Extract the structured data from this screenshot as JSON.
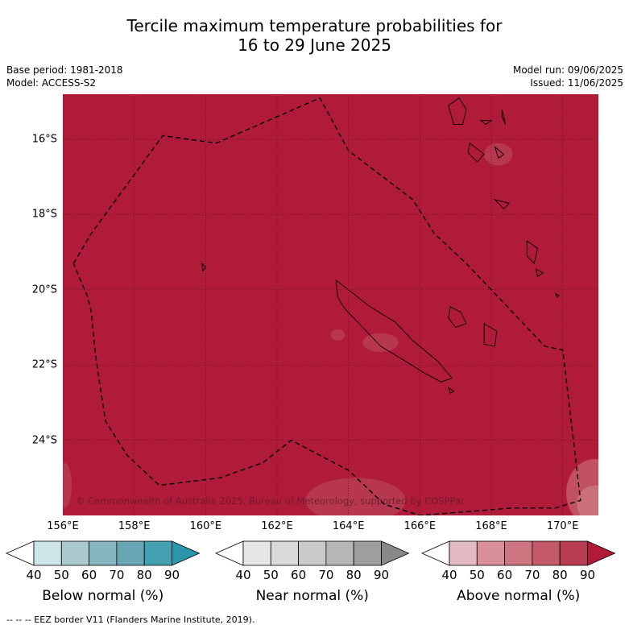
{
  "title": {
    "line1": "Tercile maximum temperature probabilities for",
    "line2": "16 to 29 June 2025"
  },
  "header_left": {
    "base_period": "Base period: 1981-2018",
    "model": "Model: ACCESS-S2"
  },
  "header_right": {
    "model_run": "Model run: 09/06/2025",
    "issued": "Issued: 11/06/2025"
  },
  "map": {
    "extent": {
      "lon_min": 156,
      "lon_max": 171,
      "lat_min": -26,
      "lat_max": -14.8
    },
    "lat_labels": [
      {
        "lat": -16,
        "text": "16°S"
      },
      {
        "lat": -18,
        "text": "18°S"
      },
      {
        "lat": -20,
        "text": "20°S"
      },
      {
        "lat": -22,
        "text": "22°S"
      },
      {
        "lat": -24,
        "text": "24°S"
      }
    ],
    "lon_labels": [
      {
        "lon": 156,
        "text": "156°E"
      },
      {
        "lon": 158,
        "text": "158°E"
      },
      {
        "lon": 160,
        "text": "160°E"
      },
      {
        "lon": 162,
        "text": "162°E"
      },
      {
        "lon": 164,
        "text": "164°E"
      },
      {
        "lon": 166,
        "text": "166°E"
      },
      {
        "lon": 168,
        "text": "168°E"
      },
      {
        "lon": 170,
        "text": "170°E"
      }
    ],
    "base_fill_color": "#b11b3a",
    "copyright": "© Commonwealth of Australia 2025, Bureau of Meteorology, supported by COSPPac"
  },
  "colorbars": [
    {
      "title": "Below normal (%)",
      "ticks": [
        "40",
        "50",
        "60",
        "70",
        "80",
        "90"
      ],
      "colors": [
        "#ffffff",
        "#cde4e9",
        "#a9c9cf",
        "#88b6c0",
        "#69a6b4",
        "#44a0b0",
        "#2b96ab"
      ]
    },
    {
      "title": "Near normal (%)",
      "ticks": [
        "40",
        "50",
        "60",
        "70",
        "80",
        "90"
      ],
      "colors": [
        "#ffffff",
        "#e6e6e6",
        "#d9d9d9",
        "#c9c9c9",
        "#b6b6b6",
        "#9e9e9e",
        "#888888"
      ]
    },
    {
      "title": "Above normal (%)",
      "ticks": [
        "40",
        "50",
        "60",
        "70",
        "80",
        "90"
      ],
      "colors": [
        "#ffffff",
        "#e2bac2",
        "#d88f99",
        "#cd7580",
        "#c45a69",
        "#b83c52",
        "#b11b3a"
      ]
    }
  ],
  "footer": "-- -- -- EEZ border V11 (Flanders Marine Institute, 2019)."
}
